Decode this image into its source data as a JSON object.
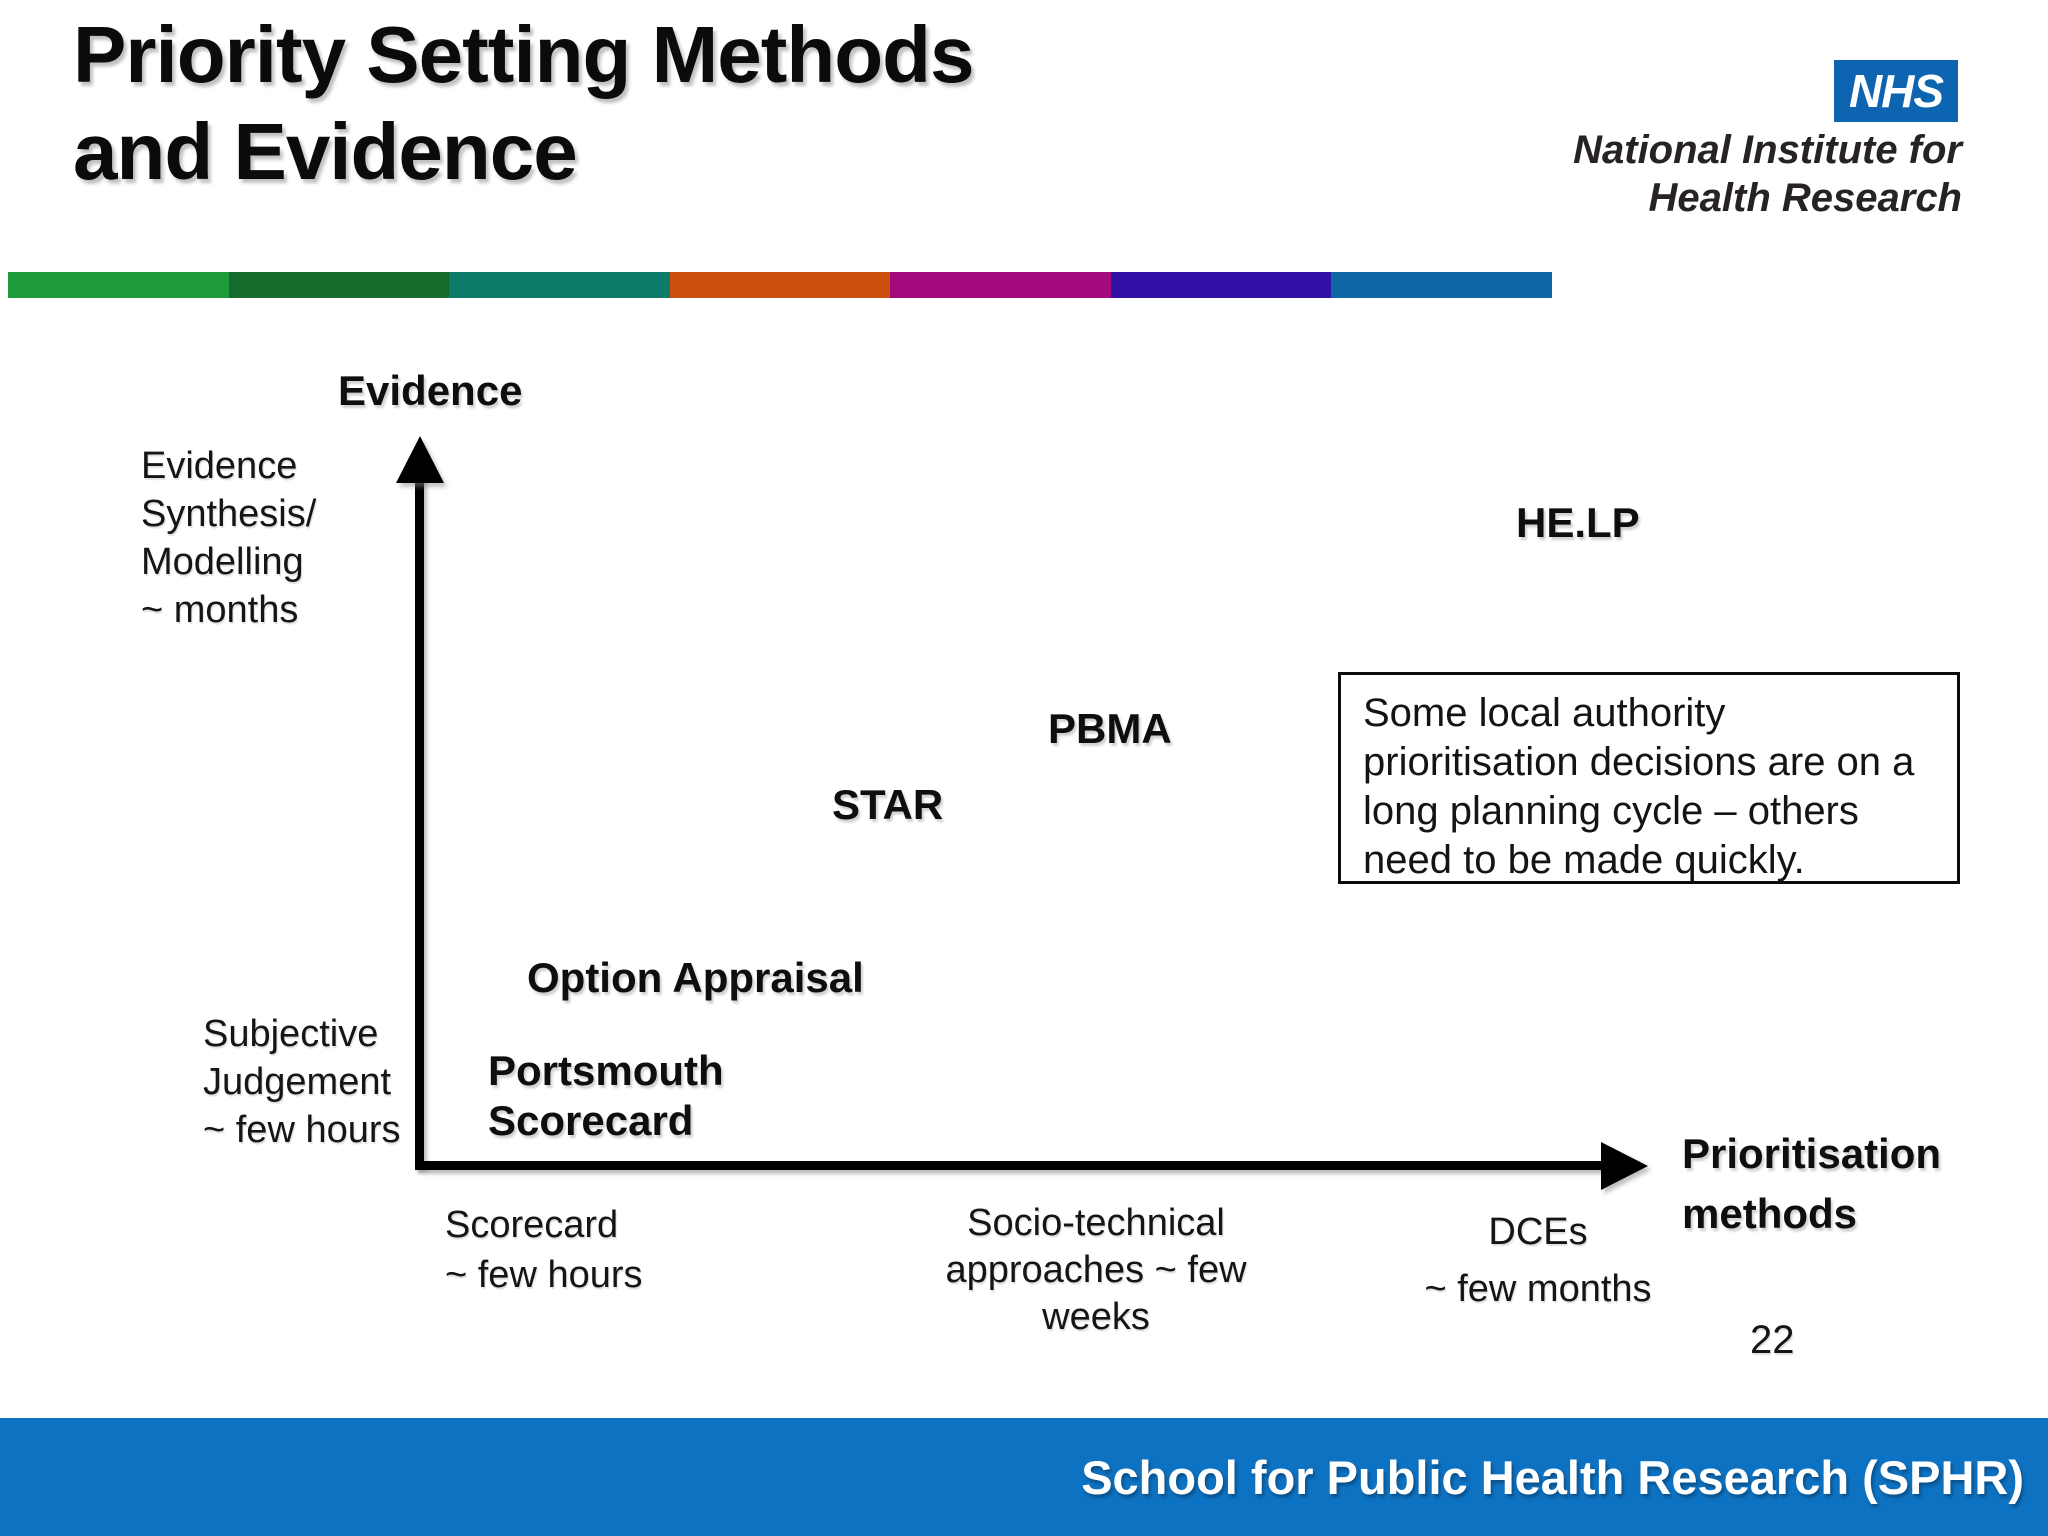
{
  "slide": {
    "title_line1": "Priority Setting Methods",
    "title_line2": "and Evidence",
    "page_number": "22"
  },
  "header_logo": {
    "nhs_label": "NHS",
    "nhs_blue": "#0d64b0",
    "org_line1": "National Institute for",
    "org_line2": "Health Research"
  },
  "accent_bar_colors": [
    "#1e9b3a",
    "#166c2c",
    "#0d7a6a",
    "#cb4f0d",
    "#a50a7c",
    "#300fa6",
    "#0f66a7"
  ],
  "diagram": {
    "y_axis_title": "Evidence",
    "y_high_line1": "Evidence",
    "y_high_line2": "Synthesis/",
    "y_high_line3": "Modelling",
    "y_high_line4": "~ months",
    "y_low_line1": "Subjective",
    "y_low_line2": "Judgement",
    "y_low_line3": "~ few hours",
    "x_title_line1": "Prioritisation",
    "x_title_line2": "methods",
    "tick_scorecard_line1": "Scorecard",
    "tick_scorecard_line2": "~ few hours",
    "tick_socio_line1": "Socio-technical",
    "tick_socio_line2": "approaches ~ few",
    "tick_socio_line3": "weeks",
    "tick_dce_line1": "DCEs",
    "tick_dce_line2": "~ few months",
    "point_help": "HE.LP",
    "point_pbma": "PBMA",
    "point_star": "STAR",
    "point_option_appraisal": "Option Appraisal",
    "point_portsmouth_line1": "Portsmouth",
    "point_portsmouth_line2": "Scorecard",
    "callout_line1": "Some local authority",
    "callout_line2": "prioritisation decisions are on a",
    "callout_line3": "long planning cycle – others",
    "callout_line4": "need to be made quickly."
  },
  "footer": {
    "text": "School for Public Health Research (SPHR)",
    "bar_color": "#0e72c2"
  }
}
